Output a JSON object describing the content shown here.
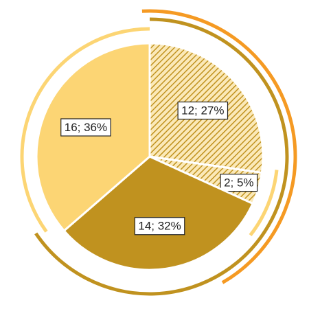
{
  "chart_data": {
    "type": "pie",
    "values": [
      12,
      2,
      14,
      16
    ],
    "value_labels": [
      "12; 27%",
      "2; 5%",
      "14; 32%",
      "16; 36%"
    ],
    "colors": [
      "#c0921f",
      "#c0921f",
      "#c0921f",
      "#fcd574"
    ],
    "hatch": [
      true,
      true,
      false,
      false
    ]
  }
}
